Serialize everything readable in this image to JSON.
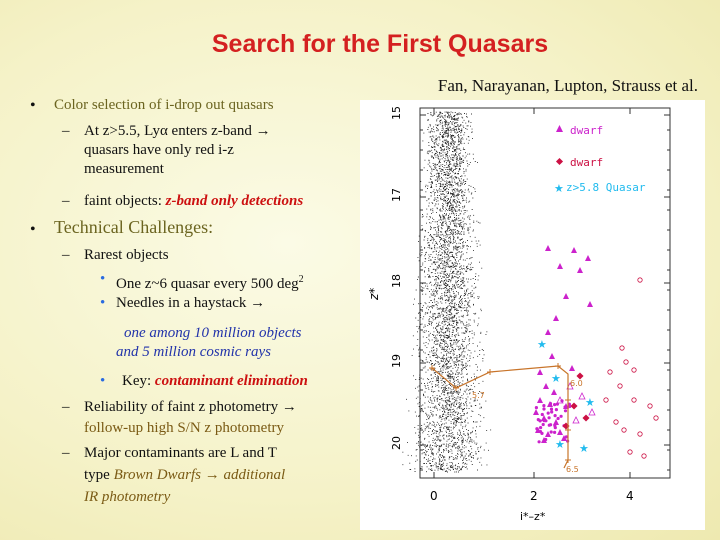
{
  "title": "Search for the First Quasars",
  "authors": "Fan, Narayanan, Lupton, Strauss et al.",
  "bullets": {
    "b1": "Color selection of  i-drop out quasars",
    "b1_s1a": "At z>5.5, Lyα enters z-band →",
    "b1_s1b": "quasars have only red i-z",
    "b1_s1c": "measurement",
    "b1_s2_pre": "faint objects: ",
    "b1_s2_em": "z-band only detections",
    "b2": "Technical Challenges:",
    "b2_s1": "Rarest objects",
    "b2_s1_a_pre": "One z~6 quasar every 500 deg",
    "b2_s1_a_sup": "2",
    "b2_s1_b": "Needles in a haystack →",
    "b2_s1_c1": "one among 10 million objects",
    "b2_s1_c2": "and 5 million cosmic rays",
    "b2_s1_d_pre": "Key: ",
    "b2_s1_d_em": "contaminant elimination",
    "b2_s2a": "Reliability of faint z photometry →",
    "b2_s2b": "follow-up high S/N z photometry",
    "b2_s3a": "Major contaminants are L and T",
    "b2_s3b_pre": "type ",
    "b2_s3b_em": "Brown Dwarfs",
    "b2_s3b_post": " →    additional",
    "b2_s3c": "IR photometry"
  },
  "plot": {
    "y_label": "z*",
    "x_label": "i*–z*",
    "y_ticks": [
      "15",
      "17",
      "18",
      "19",
      "20"
    ],
    "x_ticks": [
      "0",
      "2",
      "4"
    ],
    "legend": [
      "dwarf",
      "dwarf",
      "z>5.8 Quasar"
    ],
    "track_labels": [
      "5.7",
      "6.0",
      "6.5"
    ]
  },
  "colors": {
    "title": "#d42020",
    "magenta": "#cc22cc",
    "crimson": "#cc1144",
    "cyan": "#22bbee",
    "orange": "#c8742a"
  }
}
